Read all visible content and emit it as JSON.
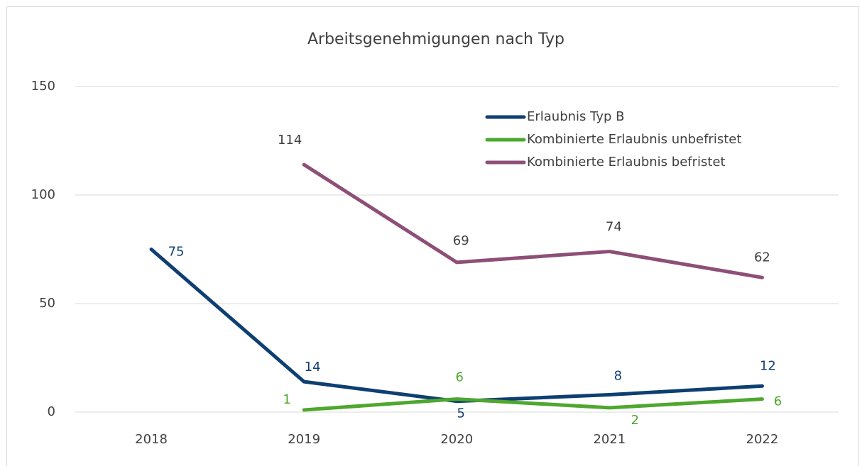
{
  "chart_data": {
    "type": "line",
    "title": "Arbeitsgenehmigungen nach Typ",
    "categories": [
      "2018",
      "2019",
      "2020",
      "2021",
      "2022"
    ],
    "series": [
      {
        "name": "Erlaubnis Typ B",
        "color": "#0e3f72",
        "values": [
          75,
          14,
          5,
          8,
          12
        ]
      },
      {
        "name": "Kombinierte Erlaubnis unbefristet",
        "color": "#4ea72e",
        "values": [
          null,
          1,
          6,
          2,
          6
        ]
      },
      {
        "name": "Kombinierte Erlaubnis befristet",
        "color": "#8e4f77",
        "values": [
          null,
          114,
          69,
          74,
          62
        ]
      }
    ],
    "ylim": [
      0,
      150
    ],
    "yticks": [
      0,
      50,
      100,
      150
    ],
    "grid": true,
    "legend": "top-right"
  }
}
